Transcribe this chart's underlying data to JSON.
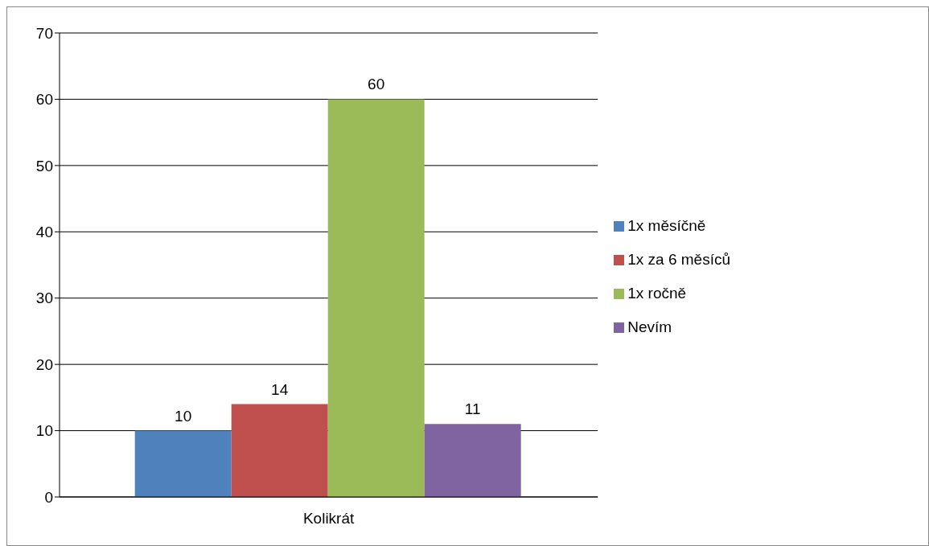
{
  "chart_data": {
    "type": "bar",
    "categories": [
      "Kolikrát"
    ],
    "series": [
      {
        "name": "1x měsíčně",
        "color": "#4f81bd",
        "values": [
          10
        ]
      },
      {
        "name": "1x za 6 měsíců",
        "color": "#c0504d",
        "values": [
          14
        ]
      },
      {
        "name": "1x ročně",
        "color": "#9bbb59",
        "values": [
          60
        ]
      },
      {
        "name": "Nevím",
        "color": "#8064a2",
        "values": [
          11
        ]
      }
    ],
    "ylim": [
      0,
      70
    ],
    "yticks": [
      0,
      10,
      20,
      30,
      40,
      50,
      60,
      70
    ],
    "grid": "y",
    "legend": "right",
    "data_labels": true
  }
}
